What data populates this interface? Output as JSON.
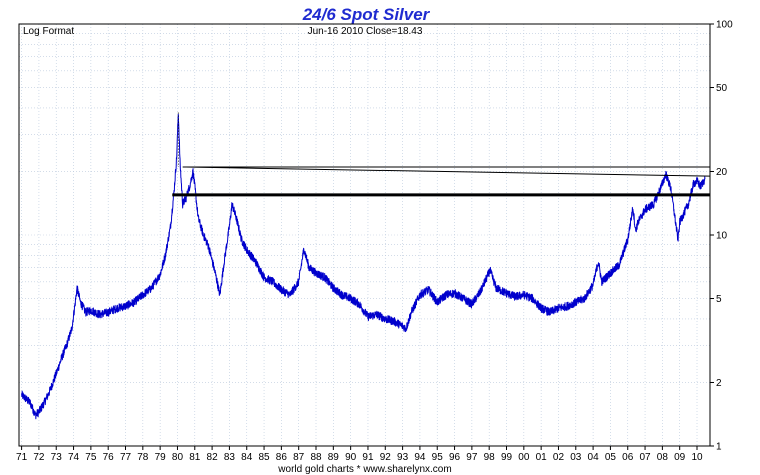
{
  "chart_data": {
    "type": "line",
    "title": "24/6 Spot Silver",
    "subtitle_left": "Log Format",
    "subtitle_center": "Jun-16  2010   Close=18.43",
    "footer": "world gold charts * www.sharelynx.com",
    "y_scale": "log",
    "y_axis_position": "right",
    "ylim": [
      1,
      100
    ],
    "y_ticks": [
      1,
      2,
      5,
      10,
      20,
      50,
      100
    ],
    "xlim": [
      1970.85,
      2010.75
    ],
    "x_ticks": [
      "71",
      "72",
      "73",
      "74",
      "75",
      "76",
      "77",
      "78",
      "79",
      "80",
      "81",
      "82",
      "83",
      "84",
      "85",
      "86",
      "87",
      "88",
      "89",
      "90",
      "91",
      "92",
      "93",
      "94",
      "95",
      "96",
      "97",
      "98",
      "99",
      "00",
      "01",
      "02",
      "03",
      "04",
      "05",
      "06",
      "07",
      "08",
      "09",
      "10"
    ],
    "grid": true,
    "line_color": "#0000cc",
    "series": [
      {
        "x": [
          1971.0,
          1971.5,
          1971.8,
          1972.0,
          1972.3,
          1972.6,
          1973.0,
          1973.3,
          1973.6,
          1973.9,
          1974.1,
          1974.2,
          1974.4,
          1974.7,
          1975.0,
          1975.5,
          1976.0,
          1976.5,
          1977.0,
          1977.5,
          1978.0,
          1978.5,
          1979.0,
          1979.3,
          1979.6,
          1979.8,
          1979.95,
          1980.05,
          1980.15,
          1980.3,
          1980.5,
          1980.7,
          1980.9,
          1981.0,
          1981.2,
          1981.5,
          1981.8,
          1982.2,
          1982.45,
          1982.7,
          1983.0,
          1983.15,
          1983.4,
          1983.7,
          1984.0,
          1984.5,
          1985.0,
          1985.5,
          1986.0,
          1986.5,
          1987.0,
          1987.3,
          1987.6,
          1988.0,
          1988.5,
          1989.0,
          1989.5,
          1990.0,
          1990.5,
          1991.0,
          1991.5,
          1992.0,
          1992.5,
          1993.0,
          1993.2,
          1993.5,
          1994.0,
          1994.5,
          1995.0,
          1995.5,
          1996.0,
          1996.5,
          1997.0,
          1997.5,
          1998.05,
          1998.4,
          1999.0,
          1999.5,
          2000.0,
          2000.5,
          2001.0,
          2001.5,
          2002.0,
          2002.5,
          2003.0,
          2003.5,
          2004.0,
          2004.3,
          2004.5,
          2005.0,
          2005.5,
          2006.0,
          2006.3,
          2006.45,
          2006.6,
          2007.0,
          2007.5,
          2008.0,
          2008.2,
          2008.5,
          2008.7,
          2008.9,
          2009.0,
          2009.5,
          2009.8,
          2010.0,
          2010.2,
          2010.46
        ],
        "values": [
          1.75,
          1.6,
          1.4,
          1.45,
          1.6,
          1.8,
          2.2,
          2.6,
          3.0,
          3.6,
          4.8,
          5.6,
          4.8,
          4.3,
          4.4,
          4.2,
          4.3,
          4.5,
          4.6,
          4.8,
          5.2,
          5.6,
          6.5,
          8.0,
          11.0,
          16.0,
          23.0,
          38.0,
          22.0,
          14.0,
          15.0,
          17.0,
          20.0,
          17.0,
          12.0,
          10.0,
          8.8,
          6.5,
          5.2,
          7.5,
          11.0,
          14.0,
          12.0,
          9.5,
          8.5,
          7.5,
          6.3,
          6.0,
          5.5,
          5.2,
          6.0,
          8.6,
          7.0,
          6.6,
          6.3,
          5.6,
          5.2,
          5.0,
          4.7,
          4.1,
          4.2,
          4.0,
          3.9,
          3.7,
          3.6,
          4.3,
          5.2,
          5.5,
          4.8,
          5.2,
          5.3,
          5.0,
          4.7,
          5.4,
          6.8,
          5.6,
          5.3,
          5.1,
          5.2,
          5.0,
          4.5,
          4.3,
          4.5,
          4.6,
          4.8,
          5.0,
          5.8,
          7.5,
          6.0,
          6.6,
          7.2,
          9.5,
          13.5,
          10.5,
          11.5,
          13.2,
          14.0,
          17.5,
          19.5,
          16.5,
          12.5,
          9.5,
          11.5,
          14.0,
          17.5,
          18.0,
          17.0,
          18.43
        ]
      }
    ],
    "annotations": [
      {
        "type": "support-line",
        "value": 15.5,
        "x_start": 1979.7,
        "x_end": 2010.75
      },
      {
        "type": "resistance-line",
        "value": 21.0,
        "x_start": 1980.3,
        "x_end": 2010.75
      },
      {
        "type": "trendline",
        "x_start": 1980.5,
        "y_start": 21.0,
        "x_end": 2010.75,
        "y_end": 19.0
      }
    ]
  }
}
